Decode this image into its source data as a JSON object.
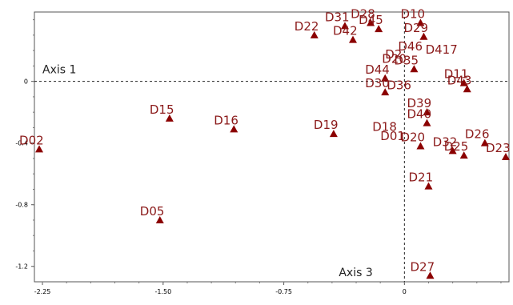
{
  "chart_data": {
    "type": "scatter",
    "title": "",
    "xlabel": "",
    "ylabel": "",
    "xlim": [
      -2.3,
      0.65
    ],
    "ylim": [
      -1.3,
      0.45
    ],
    "x_ticks": [
      -2.25,
      -1.5,
      -0.75,
      0
    ],
    "x_tick_labels": [
      "-2.25",
      "-1.50",
      "-0.75",
      "0"
    ],
    "y_ticks": [
      0,
      -0.4,
      -0.8,
      -1.2
    ],
    "y_tick_labels": [
      "0",
      "-0.4",
      "-0.8",
      "-1.2"
    ],
    "grid": false,
    "reference_lines": [
      {
        "orientation": "horizontal",
        "value": 0,
        "style": "dashed",
        "label": "Axis 1"
      },
      {
        "orientation": "vertical",
        "value": 0,
        "style": "dashed",
        "label": "Axis 3"
      }
    ],
    "marker_color": "#8b0000",
    "label_color": "#8b1a1a",
    "points": [
      {
        "label": "D02",
        "x": -2.27,
        "y": -0.44
      },
      {
        "label": "D05",
        "x": -1.52,
        "y": -0.9
      },
      {
        "label": "D15",
        "x": -1.46,
        "y": -0.24
      },
      {
        "label": "D16",
        "x": -1.06,
        "y": -0.31
      },
      {
        "label": "D19",
        "x": -0.44,
        "y": -0.34
      },
      {
        "label": "D22",
        "x": -0.56,
        "y": 0.3
      },
      {
        "label": "D31",
        "x": -0.37,
        "y": 0.36
      },
      {
        "label": "D42",
        "x": -0.32,
        "y": 0.27
      },
      {
        "label": "D28",
        "x": -0.21,
        "y": 0.38
      },
      {
        "label": "D10",
        "x": 0.1,
        "y": 0.38
      },
      {
        "label": "D45",
        "x": -0.16,
        "y": 0.34
      },
      {
        "label": "D29",
        "x": 0.12,
        "y": 0.29
      },
      {
        "label": "D26",
        "x": 0.5,
        "y": -0.4
      },
      {
        "label": "D23",
        "x": 0.63,
        "y": -0.49
      },
      {
        "label": "D25",
        "x": 0.37,
        "y": -0.48
      },
      {
        "label": "D32",
        "x": 0.3,
        "y": -0.45
      },
      {
        "label": "D11",
        "x": 0.37,
        "y": -0.01
      },
      {
        "label": "D43",
        "x": 0.39,
        "y": -0.05
      },
      {
        "label": "D35",
        "x": 0.06,
        "y": 0.08
      },
      {
        "label": "D44",
        "x": -0.12,
        "y": 0.02
      },
      {
        "label": "D30",
        "x": -0.12,
        "y": -0.07
      },
      {
        "label": "D39",
        "x": 0.14,
        "y": -0.2
      },
      {
        "label": "D40",
        "x": 0.14,
        "y": -0.27
      },
      {
        "label": "D20",
        "x": 0.1,
        "y": -0.42
      },
      {
        "label": "D21",
        "x": 0.15,
        "y": -0.68
      },
      {
        "label": "D27",
        "x": 0.16,
        "y": -1.26
      }
    ],
    "text_labels": [
      {
        "text": "D46",
        "x": 0.05,
        "y": 0.2
      },
      {
        "text": "D417",
        "x": 0.22,
        "y": 0.18
      },
      {
        "text": "D2",
        "x": -0.03,
        "y": 0.15
      },
      {
        "text": "D20",
        "x": -0.05,
        "y": 0.12
      },
      {
        "text": "D36",
        "x": -0.02,
        "y": -0.05
      },
      {
        "text": "D18",
        "x": -0.11,
        "y": -0.32
      },
      {
        "text": "D01",
        "x": -0.06,
        "y": -0.38
      }
    ]
  }
}
